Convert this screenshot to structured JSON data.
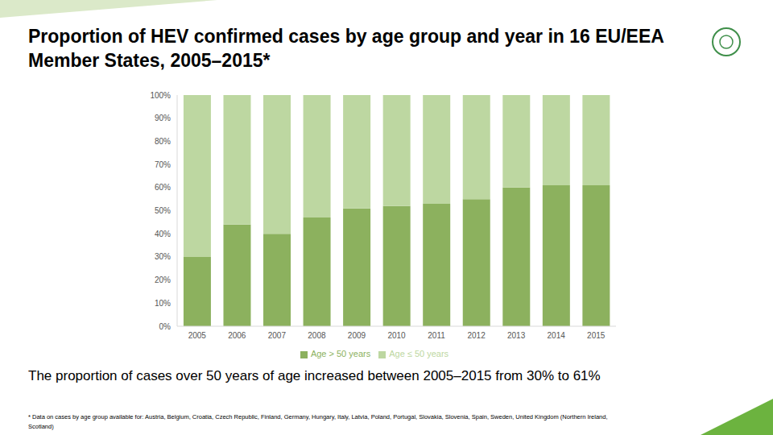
{
  "chart_data": {
    "type": "bar",
    "title": "Proportion of HEV confirmed cases by age group and year in 16 EU/EEA Member States, 2005–2015*",
    "categories": [
      "2005",
      "2006",
      "2007",
      "2008",
      "2009",
      "2010",
      "2011",
      "2012",
      "2013",
      "2014",
      "2015"
    ],
    "series": [
      {
        "name": "Age > 50 years",
        "color": "#8cb15e",
        "values": [
          30,
          44,
          40,
          47,
          51,
          52,
          53,
          55,
          60,
          61,
          61
        ]
      },
      {
        "name": "Age ≤ 50 years",
        "color": "#bdd7a1",
        "values": [
          70,
          56,
          60,
          53,
          49,
          48,
          47,
          45,
          40,
          39,
          39
        ]
      }
    ],
    "stacked": true,
    "ylim": [
      0,
      100
    ],
    "yticks": [
      {
        "value": 0,
        "label": "0%"
      },
      {
        "value": 10,
        "label": "10%"
      },
      {
        "value": 20,
        "label": "20%"
      },
      {
        "value": 30,
        "label": "30%"
      },
      {
        "value": 40,
        "label": "40%"
      },
      {
        "value": 50,
        "label": "50%"
      },
      {
        "value": 60,
        "label": "60%"
      },
      {
        "value": 70,
        "label": "70%"
      },
      {
        "value": 80,
        "label": "80%"
      },
      {
        "value": 90,
        "label": "90%"
      },
      {
        "value": 100,
        "label": "100%"
      }
    ],
    "grid": false,
    "legend": "bottom",
    "annotations": [
      "The proportion of cases over 50 years of age increased between 2005–2015 from 30% to 61%",
      "* Data on cases by age group available for: Austria, Belgium, Croatia, Czech Republic, Finland, Germany, Hungary, Italy, Latvia, Poland, Portugal, Slovakia, Slovenia, Spain, Sweden, United Kingdom (Northern Ireland, Scotland)"
    ]
  }
}
